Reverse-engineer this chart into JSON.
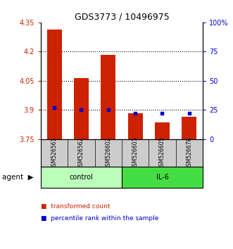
{
  "title": "GDS3773 / 10496975",
  "samples": [
    "GSM526561",
    "GSM526562",
    "GSM526602",
    "GSM526603",
    "GSM526605",
    "GSM526678"
  ],
  "groups": [
    "control",
    "control",
    "control",
    "IL-6",
    "IL-6",
    "IL-6"
  ],
  "red_values": [
    4.315,
    4.065,
    4.185,
    3.885,
    3.835,
    3.865
  ],
  "blue_pct": [
    27,
    25,
    25,
    22,
    22,
    22
  ],
  "ylim_left": [
    3.75,
    4.35
  ],
  "ylim_right": [
    0,
    100
  ],
  "yticks_left": [
    3.75,
    3.9,
    4.05,
    4.2,
    4.35
  ],
  "yticks_right": [
    0,
    25,
    50,
    75,
    100
  ],
  "ytick_labels_left": [
    "3.75",
    "3.9",
    "4.05",
    "4.2",
    "4.35"
  ],
  "ytick_labels_right": [
    "0",
    "25",
    "50",
    "75",
    "100%"
  ],
  "hlines": [
    3.9,
    4.05,
    4.2
  ],
  "bar_color": "#cc2200",
  "dot_color": "#0000cc",
  "control_color": "#bbffbb",
  "il6_color": "#44dd44",
  "label_bg_color": "#cccccc",
  "legend_red_label": "transformed count",
  "legend_blue_label": "percentile rank within the sample",
  "control_label": "control",
  "il6_label": "IL-6",
  "bar_width": 0.55
}
